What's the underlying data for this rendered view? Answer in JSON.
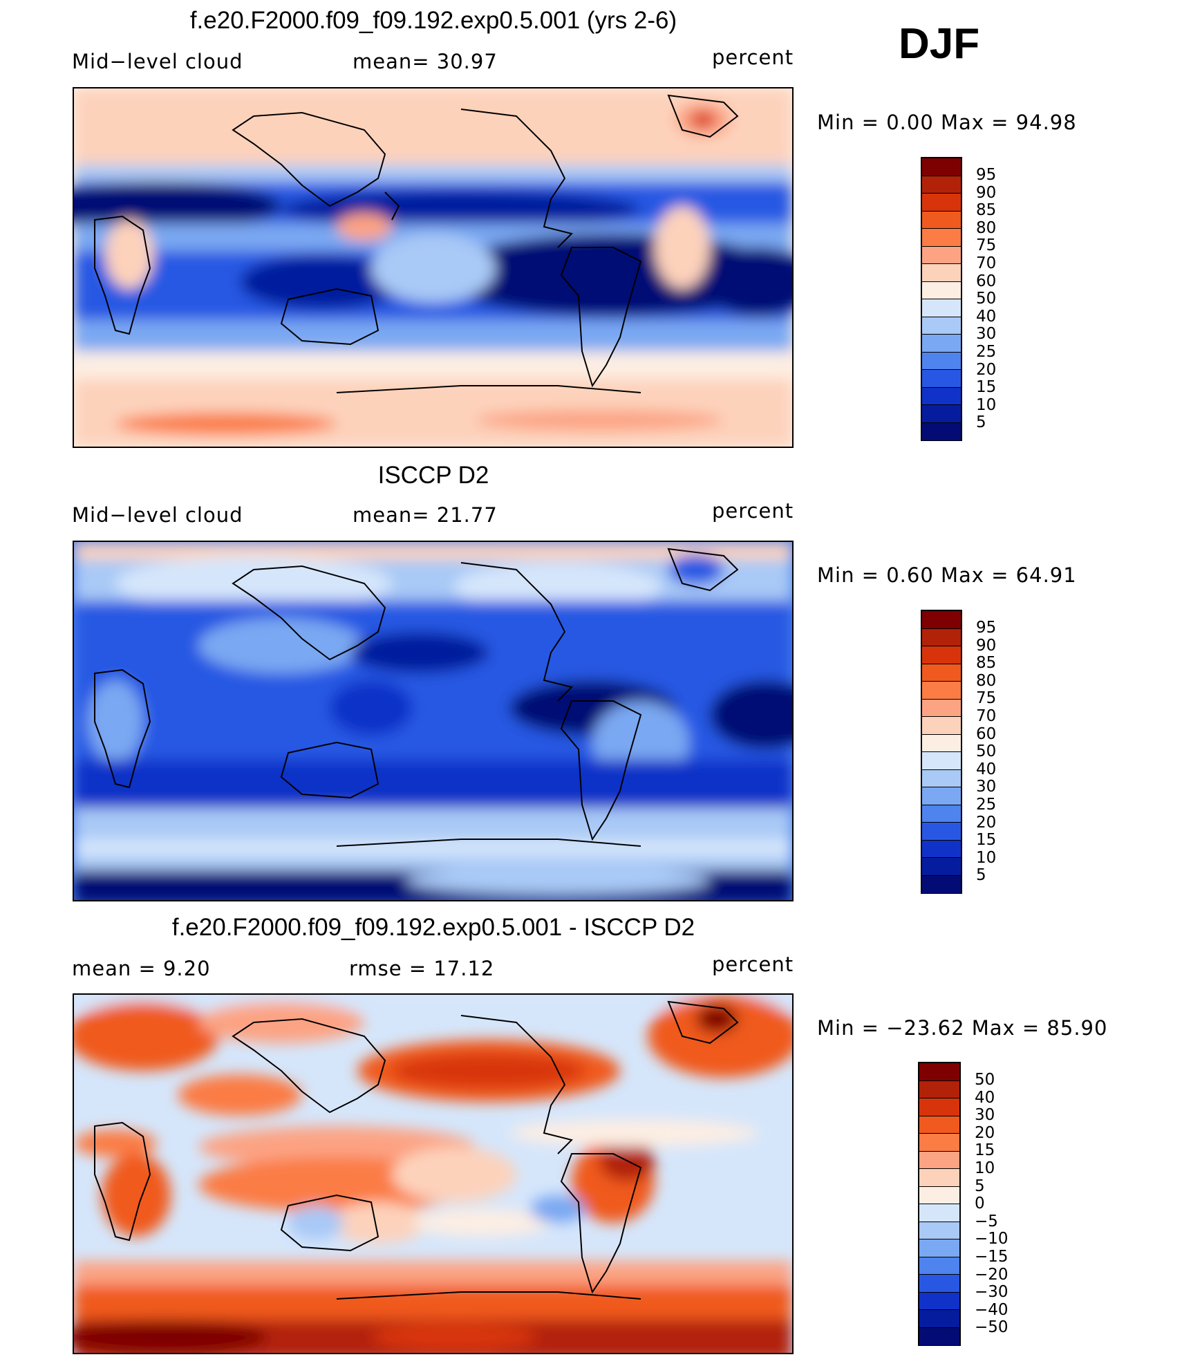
{
  "season": "DJF",
  "panels": [
    {
      "title": "f.e20.F2000.f09_f09.192.exp0.5.001 (yrs 2-6)",
      "left_label": "Mid−level cloud",
      "center_label": "mean=   30.97",
      "right_label": "percent",
      "minmax": "Min =    0.00 Max =   94.98",
      "colorbar_labels": [
        "95",
        "90",
        "85",
        "80",
        "75",
        "70",
        "60",
        "50",
        "40",
        "30",
        "25",
        "20",
        "15",
        "10",
        "5"
      ]
    },
    {
      "title": "ISCCP D2",
      "left_label": "Mid−level cloud",
      "center_label": "mean=   21.77",
      "right_label": "percent",
      "minmax": "Min =    0.60 Max =   64.91",
      "colorbar_labels": [
        "95",
        "90",
        "85",
        "80",
        "75",
        "70",
        "60",
        "50",
        "40",
        "30",
        "25",
        "20",
        "15",
        "10",
        "5"
      ]
    },
    {
      "title": "f.e20.F2000.f09_f09.192.exp0.5.001 - ISCCP D2",
      "left_label": "mean =    9.20",
      "center_label": "rmse =   17.12",
      "right_label": "percent",
      "minmax": "Min = −23.62 Max =   85.90",
      "colorbar_labels": [
        "50",
        "40",
        "30",
        "20",
        "15",
        "10",
        "5",
        "0",
        "−5",
        "−10",
        "−15",
        "−20",
        "−30",
        "−40",
        "−50"
      ]
    }
  ],
  "colors": {
    "scale": [
      "#7f0000",
      "#b22209",
      "#d8340b",
      "#f05a1e",
      "#fb7c45",
      "#fca383",
      "#fdd2bb",
      "#fdeee3",
      "#d5e6fb",
      "#a9c9f6",
      "#7aa8f2",
      "#4f83ee",
      "#2858e3",
      "#1132c8",
      "#061c9e",
      "#020c74"
    ],
    "land_outline": "#000000"
  }
}
